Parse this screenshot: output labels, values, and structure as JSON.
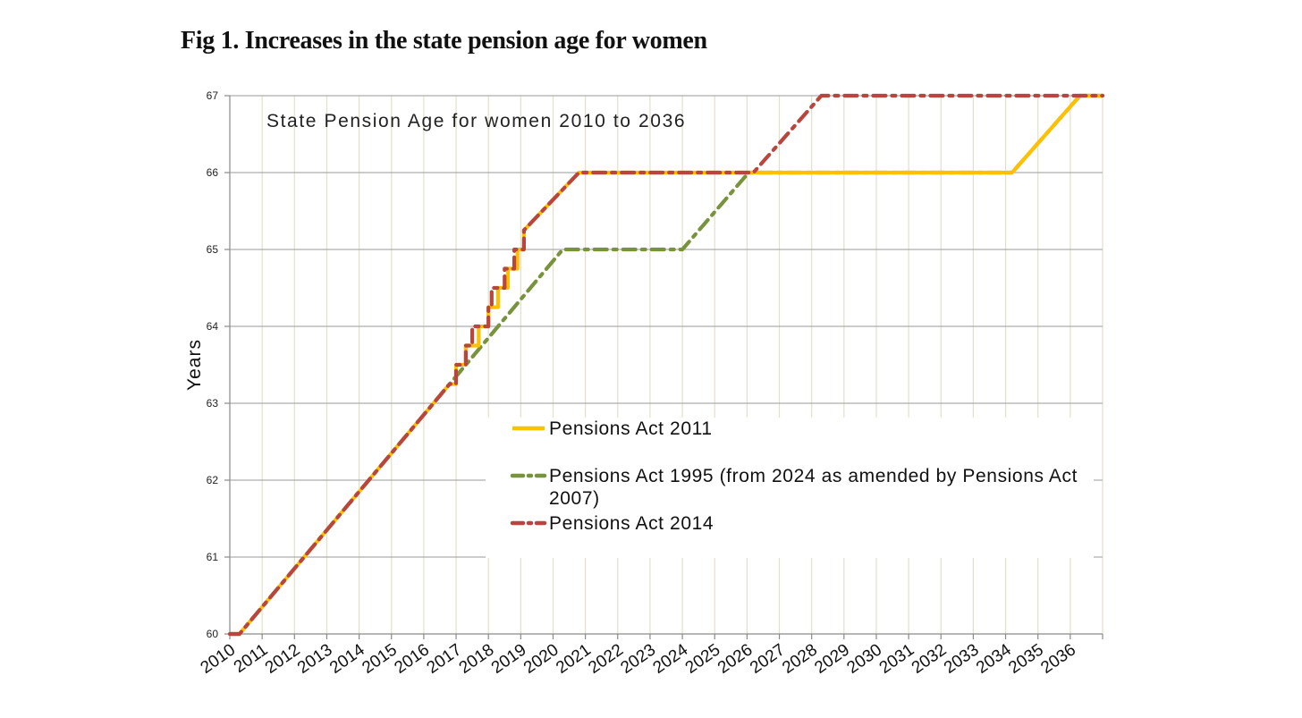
{
  "figure_title": "Fig 1. Increases in the state pension age for women",
  "chart_data": {
    "type": "line",
    "title": "State Pension Age for women 2010 to 2036",
    "xlabel": "",
    "ylabel": "Years",
    "xlim": [
      2010,
      2037
    ],
    "ylim": [
      60,
      67
    ],
    "x_ticks": [
      "2010",
      "2011",
      "2012",
      "2013",
      "2014",
      "2015",
      "2016",
      "2017",
      "2018",
      "2019",
      "2020",
      "2021",
      "2022",
      "2023",
      "2024",
      "2025",
      "2026",
      "2027",
      "2028",
      "2029",
      "2030",
      "2031",
      "2032",
      "2033",
      "2034",
      "2035",
      "2036"
    ],
    "y_ticks": [
      "60",
      "61",
      "62",
      "63",
      "64",
      "65",
      "66",
      "67"
    ],
    "grid": true,
    "legend_position": "center-right",
    "series": [
      {
        "name": "Pensions Act 2011",
        "color": "#FFC000",
        "style": "solid",
        "points": [
          [
            2010,
            60
          ],
          [
            2010.3,
            60
          ],
          [
            2016.8,
            63.25
          ],
          [
            2017,
            63.25
          ],
          [
            2017,
            63.5
          ],
          [
            2017.3,
            63.5
          ],
          [
            2017.3,
            63.75
          ],
          [
            2017.7,
            63.75
          ],
          [
            2017.7,
            64
          ],
          [
            2018,
            64
          ],
          [
            2018,
            64.25
          ],
          [
            2018.3,
            64.25
          ],
          [
            2018.3,
            64.5
          ],
          [
            2018.6,
            64.5
          ],
          [
            2018.6,
            64.75
          ],
          [
            2018.9,
            64.75
          ],
          [
            2018.9,
            65
          ],
          [
            2019.1,
            65
          ],
          [
            2019.1,
            65.25
          ],
          [
            2020.8,
            66
          ],
          [
            2034.2,
            66
          ],
          [
            2036.3,
            67
          ],
          [
            2037,
            67
          ]
        ]
      },
      {
        "name": "Pensions Act 1995 (from 2024 as amended by Pensions Act 2007)",
        "color": "#77933C",
        "style": "dashed",
        "points": [
          [
            2010,
            60
          ],
          [
            2010.3,
            60
          ],
          [
            2016.8,
            63.25
          ],
          [
            2020.3,
            65
          ],
          [
            2024,
            65
          ],
          [
            2026.05,
            66
          ],
          [
            2034.2,
            66
          ],
          [
            2036.3,
            67
          ],
          [
            2037,
            67
          ]
        ]
      },
      {
        "name": "Pensions Act 2014",
        "color": "#B8463E",
        "style": "dashed",
        "points": [
          [
            2010,
            60
          ],
          [
            2010.3,
            60
          ],
          [
            2016.8,
            63.25
          ],
          [
            2017,
            63.25
          ],
          [
            2017,
            63.5
          ],
          [
            2017.3,
            63.5
          ],
          [
            2017.3,
            63.75
          ],
          [
            2017.5,
            63.75
          ],
          [
            2017.5,
            64
          ],
          [
            2018,
            64
          ],
          [
            2018,
            64.25
          ],
          [
            2018.1,
            64.25
          ],
          [
            2018.1,
            64.5
          ],
          [
            2018.5,
            64.5
          ],
          [
            2018.5,
            64.75
          ],
          [
            2018.8,
            64.75
          ],
          [
            2018.8,
            65
          ],
          [
            2019.1,
            65
          ],
          [
            2019.1,
            65.25
          ],
          [
            2020.8,
            66
          ],
          [
            2026.2,
            66
          ],
          [
            2028.3,
            67
          ],
          [
            2037,
            67
          ]
        ]
      }
    ]
  }
}
